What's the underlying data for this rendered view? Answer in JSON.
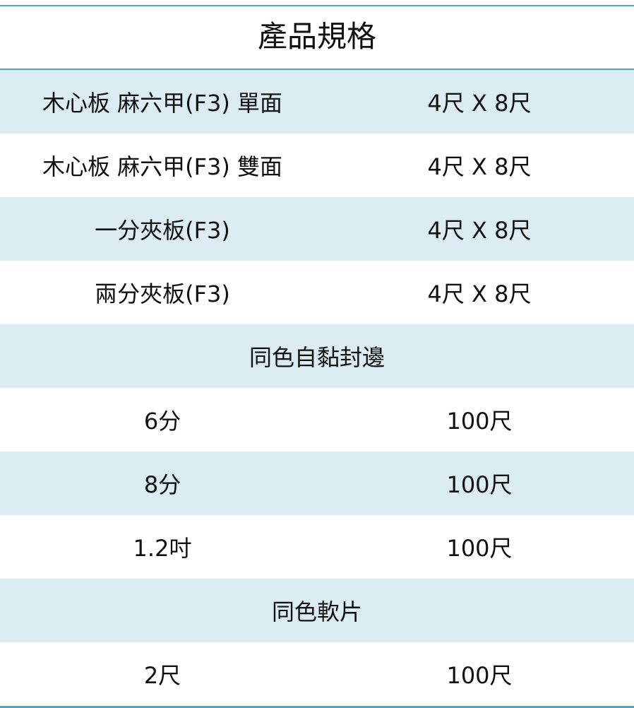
{
  "title": "產品規格",
  "rows": [
    {
      "left": "木心板 麻六甲(F3) 單面",
      "right": "4尺 X 8尺"
    },
    {
      "left": "木心板 麻六甲(F3) 雙面",
      "right": "4尺 X 8尺"
    },
    {
      "left": "一分夾板(F3)",
      "right": "4尺 X 8尺"
    },
    {
      "left": "兩分夾板(F3)",
      "right": "4尺 X 8尺"
    },
    {
      "section": "同色自黏封邊"
    },
    {
      "left": "6分",
      "right": "100尺"
    },
    {
      "left": "8分",
      "right": "100尺"
    },
    {
      "left": "1.2吋",
      "right": "100尺"
    },
    {
      "section": "同色軟片"
    },
    {
      "left": "2尺",
      "right": "100尺"
    }
  ],
  "colors": {
    "border": "#4aa8c4",
    "stripe": "#dbedf3"
  }
}
